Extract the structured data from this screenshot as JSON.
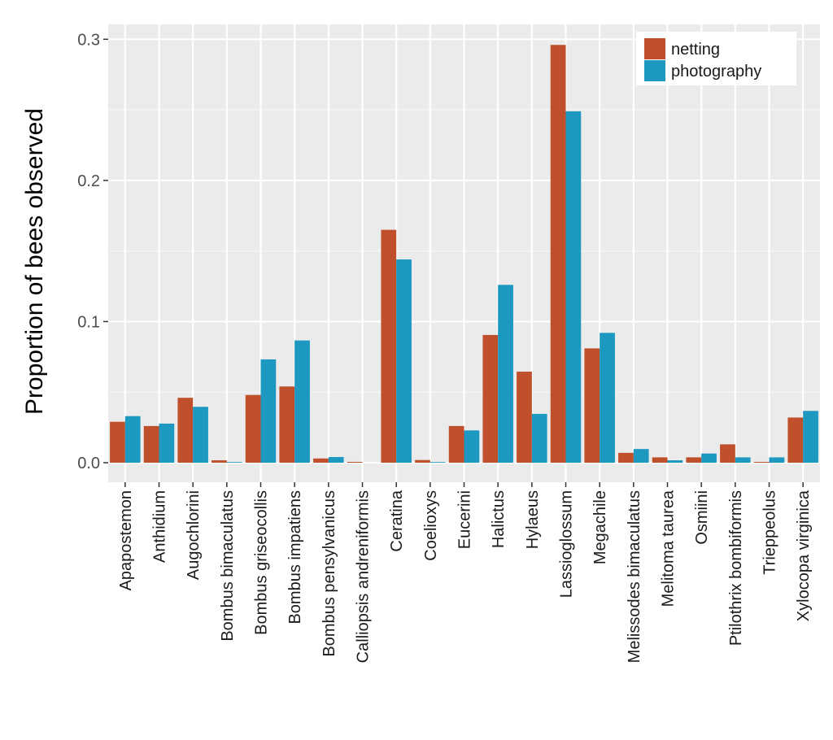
{
  "chart_data": {
    "type": "bar",
    "title": "",
    "xlabel": "",
    "ylabel": "Proportion of bees observed",
    "ylim": [
      -0.015,
      0.31
    ],
    "yticks": [
      0.0,
      0.1,
      0.2,
      0.3
    ],
    "ytick_labels": [
      "0.0",
      "0.1",
      "0.2",
      "0.3"
    ],
    "grid": true,
    "legend_position": "top-right",
    "categories": [
      "Apapostemon",
      "Anthidium",
      "Augochlorini",
      "Bombus bimaculatus",
      "Bombus griseocollis",
      "Bombus impatiens",
      "Bombus pensylvanicus",
      "Calliopsis andreniformis",
      "Ceratina",
      "Coelioxys",
      "Eucerini",
      "Halictus",
      "Hylaeus",
      "Lassioglossum",
      "Megachile",
      "Melissodes bimaculatus",
      "Melitoma taurea",
      "Osmiini",
      "Ptilothrix bombiformis",
      "Trieppeolus",
      "Xylocopa virginica"
    ],
    "series": [
      {
        "name": "netting",
        "color": "#c0502b",
        "values": [
          0.029,
          0.026,
          0.046,
          0.0017,
          0.048,
          0.054,
          0.003,
          0.0006,
          0.165,
          0.0019,
          0.026,
          0.0905,
          0.0645,
          0.296,
          0.081,
          0.007,
          0.0038,
          0.0038,
          0.013,
          0.0006,
          0.032
        ]
      },
      {
        "name": "photography",
        "color": "#1d98c1",
        "values": [
          0.033,
          0.0277,
          0.0396,
          0.0005,
          0.0732,
          0.0866,
          0.004,
          0.0,
          0.144,
          0.0005,
          0.0229,
          0.126,
          0.0346,
          0.249,
          0.092,
          0.0097,
          0.0017,
          0.0065,
          0.0038,
          0.0038,
          0.0367
        ]
      }
    ]
  }
}
